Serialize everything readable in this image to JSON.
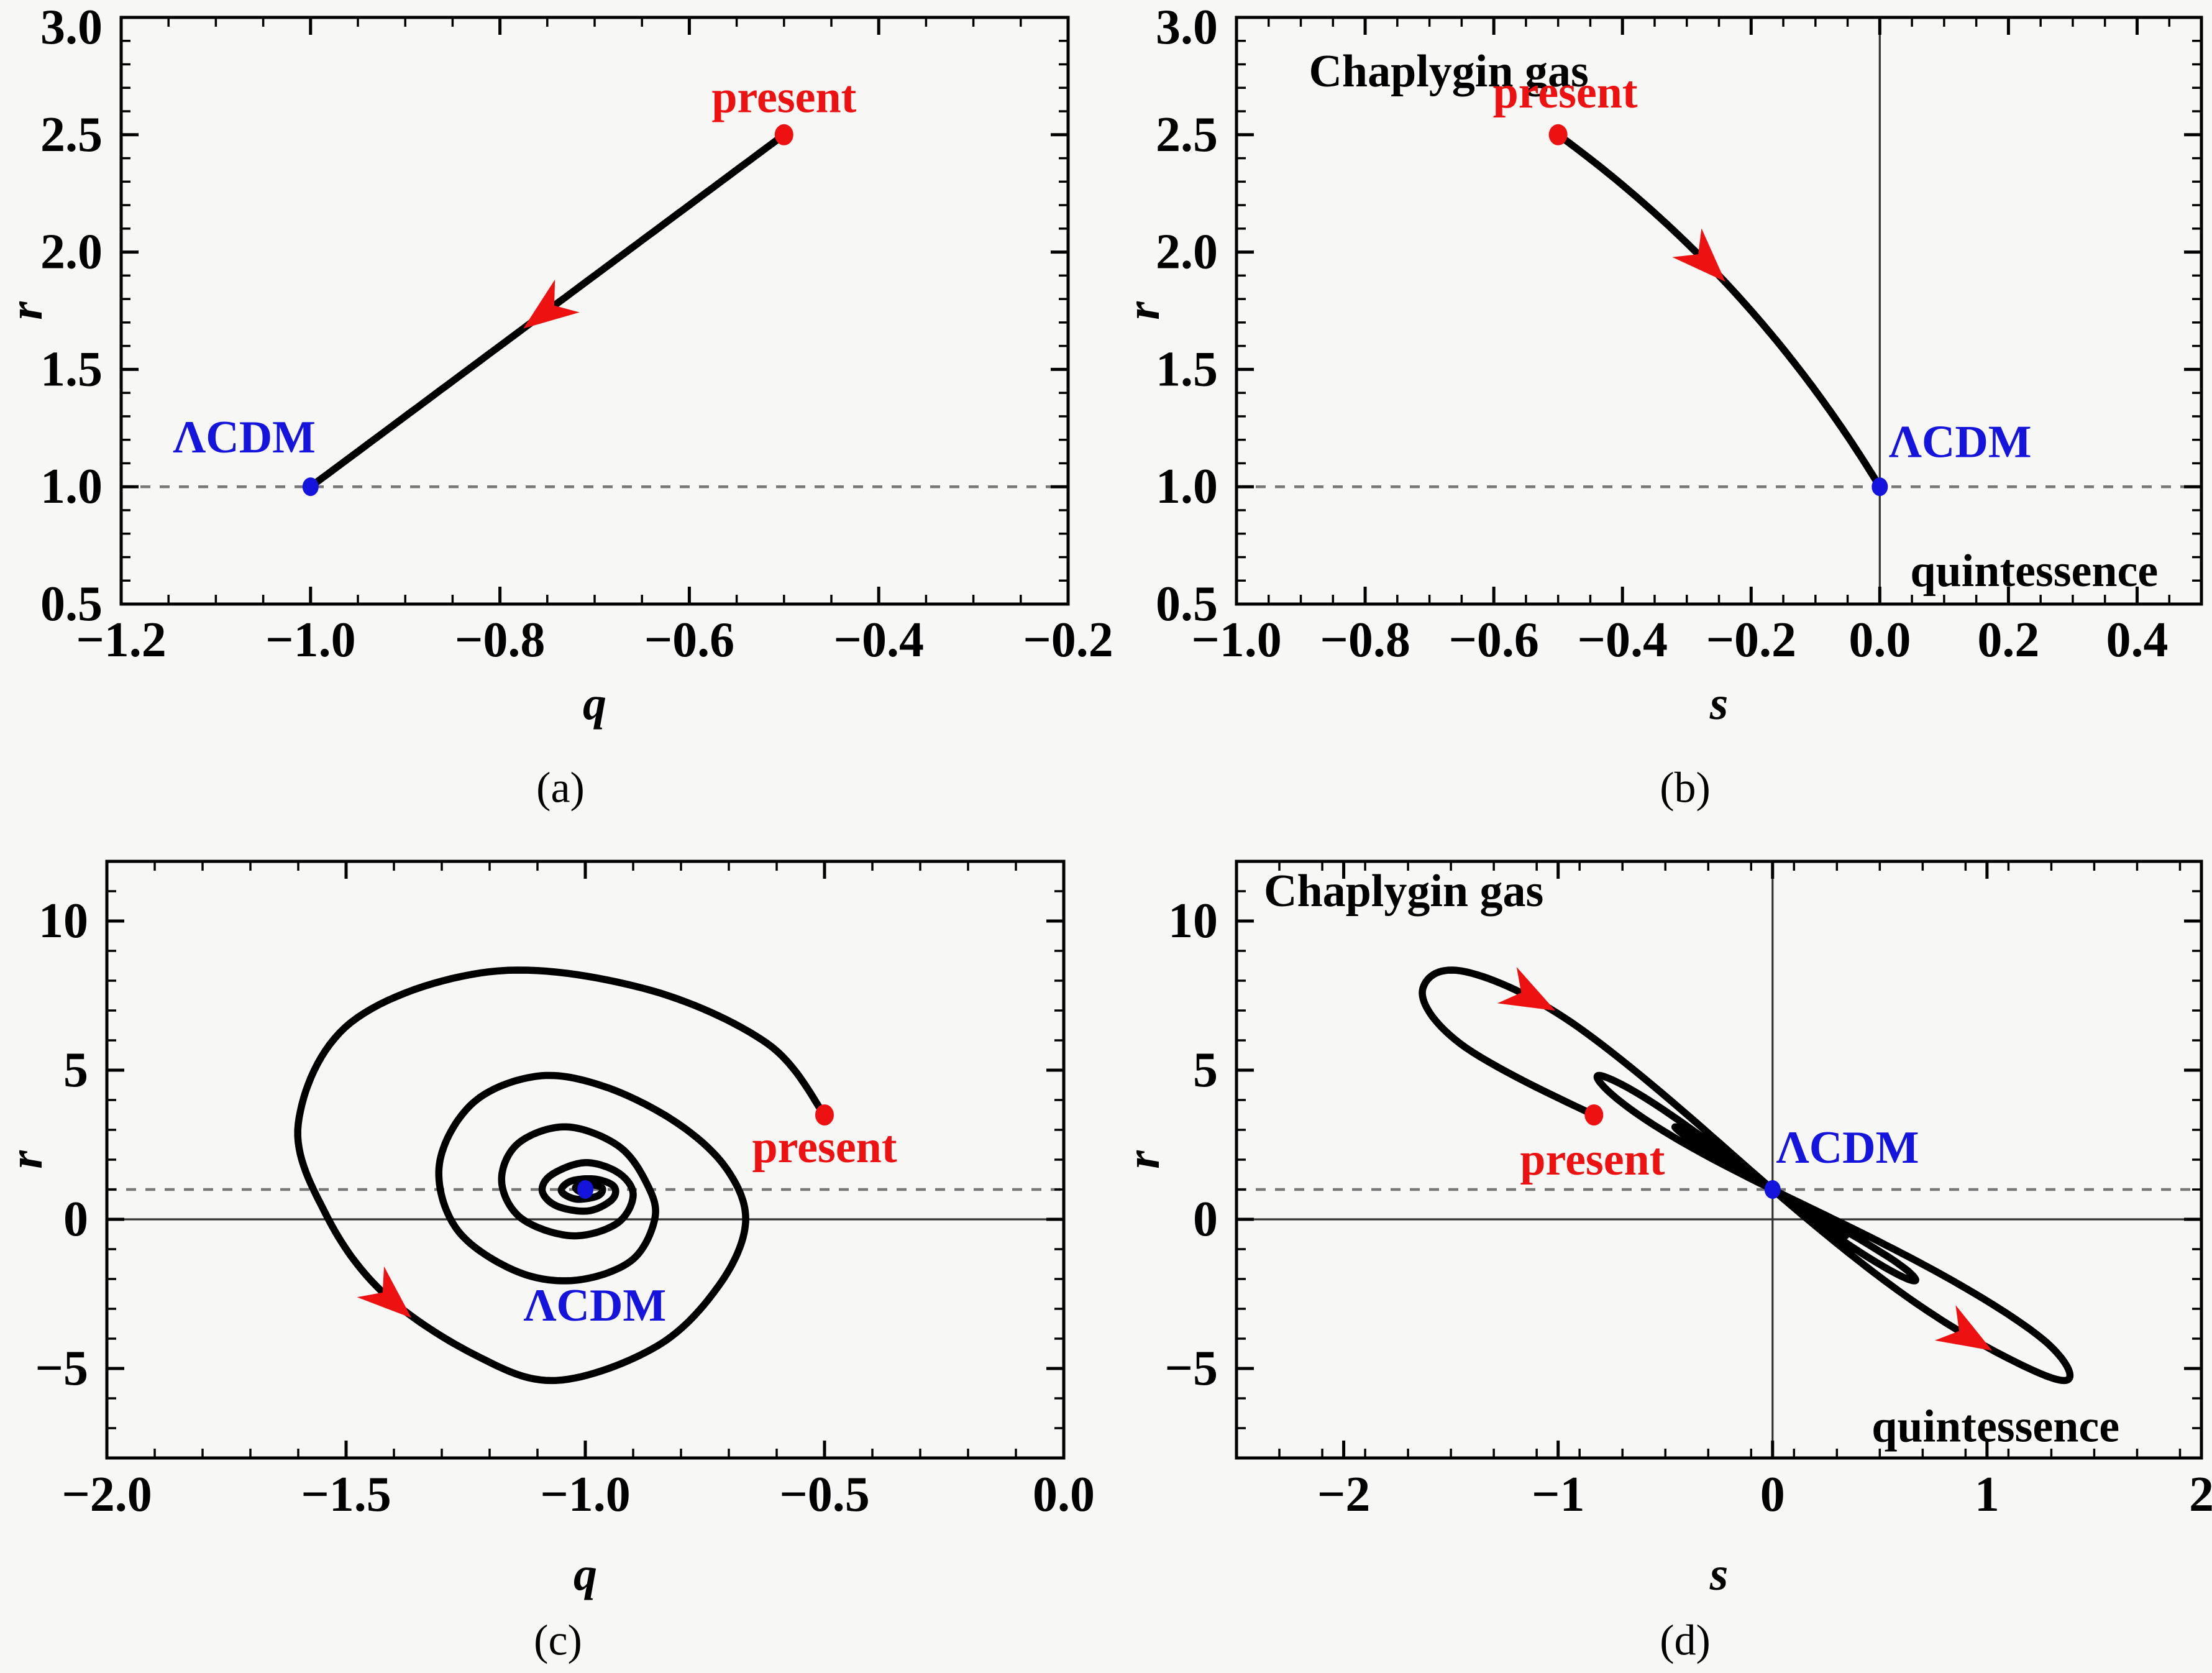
{
  "figure": {
    "description": "Statefinder diagnostic trajectories for a Chaplygin gas dark-energy model: r vs q and r vs s planes",
    "background": "#f7f7f5",
    "colors": {
      "trajectory": "#000000",
      "frame": "#000000",
      "dashed_line": "#787878",
      "zero_line": "#333333",
      "present": "#ee1111",
      "lcdm": "#1414dd",
      "text": "#000000"
    }
  },
  "chart_data": [
    {
      "id": "a",
      "caption": "(a)",
      "type": "line",
      "xlabel": "q",
      "ylabel": "r",
      "xlim": [
        -1.2,
        -0.2
      ],
      "ylim": [
        0.5,
        3.0
      ],
      "xticks": {
        "values": [
          -1.2,
          -1.0,
          -0.8,
          -0.6,
          -0.4,
          -0.2
        ],
        "labels": [
          "−1.2",
          "−1.0",
          "−0.8",
          "−0.6",
          "−0.4",
          "−0.2"
        ],
        "minor_step": 0.05
      },
      "yticks": {
        "values": [
          0.5,
          1.0,
          1.5,
          2.0,
          2.5,
          3.0
        ],
        "labels": [
          "0.5",
          "1.0",
          "1.5",
          "2.0",
          "2.5",
          "3.0"
        ],
        "minor_step": 0.1
      },
      "reference_lines": {
        "dashed_h": 1.0
      },
      "trajectory": {
        "kind": "segment",
        "points_qr": [
          [
            -0.5,
            2.5
          ],
          [
            -1.0,
            1.0
          ]
        ]
      },
      "markers": [
        {
          "name": "present",
          "x": -0.5,
          "y": 2.5,
          "color": "present",
          "radius": 15
        },
        {
          "name": "ΛCDM",
          "x": -1.0,
          "y": 1.0,
          "color": "lcdm",
          "radius": 13
        }
      ],
      "annotations": [
        {
          "text": "present",
          "x": -0.5,
          "y": 2.66,
          "color": "present"
        },
        {
          "text": "ΛCDM",
          "x": -1.07,
          "y": 1.21,
          "color": "lcdm"
        }
      ],
      "arrows": [
        {
          "t": 0.5
        }
      ]
    },
    {
      "id": "b",
      "caption": "(b)",
      "type": "line",
      "xlabel": "s",
      "ylabel": "r",
      "xlim": [
        -1.0,
        0.5
      ],
      "ylim": [
        0.5,
        3.0
      ],
      "xticks": {
        "values": [
          -1.0,
          -0.8,
          -0.6,
          -0.4,
          -0.2,
          0.0,
          0.2,
          0.4
        ],
        "labels": [
          "−1.0",
          "−0.8",
          "−0.6",
          "−0.4",
          "−0.2",
          "0.0",
          "0.2",
          "0.4"
        ],
        "minor_step": 0.05
      },
      "yticks": {
        "values": [
          0.5,
          1.0,
          1.5,
          2.0,
          2.5,
          3.0
        ],
        "labels": [
          "0.5",
          "1.0",
          "1.5",
          "2.0",
          "2.5",
          "3.0"
        ],
        "minor_step": 0.1
      },
      "reference_lines": {
        "dashed_h": 1.0,
        "zero_v": 0.0
      },
      "trajectory": {
        "kind": "mapped_segment",
        "points_qr": [
          [
            -0.5,
            2.5
          ],
          [
            -1.0,
            1.0
          ]
        ],
        "map": "s = (r − 1) / (3 (q − 1/2))"
      },
      "markers": [
        {
          "name": "present",
          "x": -0.5,
          "y": 2.5,
          "color": "present",
          "radius": 15
        },
        {
          "name": "ΛCDM",
          "x": 0.0,
          "y": 1.0,
          "color": "lcdm",
          "radius": 13
        }
      ],
      "annotations": [
        {
          "text": "Chaplygin gas",
          "x": -0.67,
          "y": 2.77,
          "color": "text"
        },
        {
          "text": "present",
          "x": -0.489,
          "y": 2.68,
          "color": "present"
        },
        {
          "text": "ΛCDM",
          "x": 0.125,
          "y": 1.19,
          "color": "lcdm"
        },
        {
          "text": "quintessence",
          "x": 0.24,
          "y": 0.64,
          "color": "text"
        }
      ],
      "arrows": [
        {
          "t": 0.36
        }
      ]
    },
    {
      "id": "c",
      "caption": "(c)",
      "type": "line",
      "xlabel": "q",
      "ylabel": "r",
      "xlim": [
        -2.0,
        0.0
      ],
      "ylim": [
        -8,
        12
      ],
      "xticks": {
        "values": [
          -2.0,
          -1.5,
          -1.0,
          -0.5,
          0.0
        ],
        "labels": [
          "−2.0",
          "−1.5",
          "−1.0",
          "−0.5",
          "0.0"
        ],
        "minor_step": 0.1
      },
      "yticks": {
        "values": [
          -5,
          0,
          5,
          10
        ],
        "labels": [
          "−5",
          "0",
          "5",
          "10"
        ],
        "minor_step": 1
      },
      "reference_lines": {
        "dashed_h": 1.0,
        "zero_h": 0.0
      },
      "trajectory": {
        "kind": "spline",
        "points_qr": [
          [
            -0.5,
            3.5
          ],
          [
            -0.62,
            5.9
          ],
          [
            -0.88,
            7.75
          ],
          [
            -1.2,
            8.3
          ],
          [
            -1.49,
            6.6
          ],
          [
            -1.6,
            3.2
          ],
          [
            -1.54,
            0.1
          ],
          [
            -1.42,
            -2.5
          ],
          [
            -1.23,
            -4.55
          ],
          [
            -1.06,
            -5.4
          ],
          [
            -0.85,
            -4.25
          ],
          [
            -0.72,
            -2.2
          ],
          [
            -0.665,
            -0.1
          ],
          [
            -0.705,
            1.7
          ],
          [
            -0.81,
            3.25
          ],
          [
            -0.96,
            4.45
          ],
          [
            -1.1,
            4.8
          ],
          [
            -1.235,
            3.9
          ],
          [
            -1.305,
            1.85
          ],
          [
            -1.27,
            -0.3
          ],
          [
            -1.15,
            -1.7
          ],
          [
            -1.025,
            -2.05
          ],
          [
            -0.905,
            -1.4
          ],
          [
            -0.855,
            0.0
          ],
          [
            -0.87,
            1.15
          ],
          [
            -0.93,
            2.45
          ],
          [
            -1.04,
            3.1
          ],
          [
            -1.14,
            2.55
          ],
          [
            -1.175,
            1.3
          ],
          [
            -1.135,
            0.05
          ],
          [
            -1.03,
            -0.55
          ],
          [
            -0.935,
            -0.15
          ],
          [
            -0.9,
            0.8
          ],
          [
            -0.93,
            1.55
          ],
          [
            -1.0,
            1.9
          ],
          [
            -1.07,
            1.5
          ],
          [
            -1.09,
            0.95
          ],
          [
            -1.06,
            0.45
          ],
          [
            -0.995,
            0.28
          ],
          [
            -0.945,
            0.65
          ],
          [
            -0.94,
            1.1
          ],
          [
            -0.98,
            1.35
          ],
          [
            -1.03,
            1.28
          ],
          [
            -1.05,
            0.95
          ],
          [
            -1.02,
            0.68
          ],
          [
            -0.975,
            0.78
          ],
          [
            -0.965,
            1.05
          ],
          [
            -0.995,
            1.18
          ],
          [
            -1.02,
            1.08
          ],
          [
            -1.01,
            0.92
          ],
          [
            -0.995,
            0.95
          ],
          [
            -1.0,
            1.0
          ]
        ]
      },
      "markers": [
        {
          "name": "present",
          "x": -0.5,
          "y": 3.5,
          "color": "present",
          "radius": 15
        },
        {
          "name": "ΛCDM",
          "x": -1.0,
          "y": 1.0,
          "color": "lcdm",
          "radius": 13
        }
      ],
      "annotations": [
        {
          "text": "present",
          "x": -0.5,
          "y": 2.42,
          "color": "present"
        },
        {
          "text": "ΛCDM",
          "x": -0.98,
          "y": -2.9,
          "color": "lcdm"
        }
      ],
      "arrows": [
        {
          "t": 0.138
        }
      ]
    },
    {
      "id": "d",
      "caption": "(d)",
      "type": "line",
      "xlabel": "s",
      "ylabel": "r",
      "xlim": [
        -2.5,
        2.0
      ],
      "ylim": [
        -8,
        12
      ],
      "xticks": {
        "values": [
          -2,
          -1,
          0,
          1,
          2
        ],
        "labels": [
          "−2",
          "−1",
          "0",
          "1",
          "2"
        ],
        "minor_step": 0.2
      },
      "yticks": {
        "values": [
          -5,
          0,
          5,
          10
        ],
        "labels": [
          "−5",
          "0",
          "5",
          "10"
        ],
        "minor_step": 1
      },
      "reference_lines": {
        "dashed_h": 1.0,
        "zero_h": 0.0,
        "zero_v": 0.0
      },
      "trajectory": {
        "kind": "mapped_spline",
        "source": "c",
        "map": "s = (r − 1) / (3 (q − 1/2))"
      },
      "markers": [
        {
          "name": "present",
          "x": -0.833,
          "y": 3.5,
          "color": "present",
          "radius": 15
        },
        {
          "name": "ΛCDM",
          "x": 0.0,
          "y": 1.0,
          "color": "lcdm",
          "radius": 13
        }
      ],
      "annotations": [
        {
          "text": "Chaplygin gas",
          "x": -1.72,
          "y": 11.0,
          "color": "text"
        },
        {
          "text": "present",
          "x": -0.84,
          "y": 2.0,
          "color": "present"
        },
        {
          "text": "ΛCDM",
          "x": 0.35,
          "y": 2.4,
          "color": "lcdm"
        },
        {
          "text": "quintessence",
          "x": 1.04,
          "y": -6.95,
          "color": "text"
        }
      ],
      "arrows": [
        {
          "t": 0.071
        },
        {
          "t": 0.149
        }
      ]
    }
  ]
}
